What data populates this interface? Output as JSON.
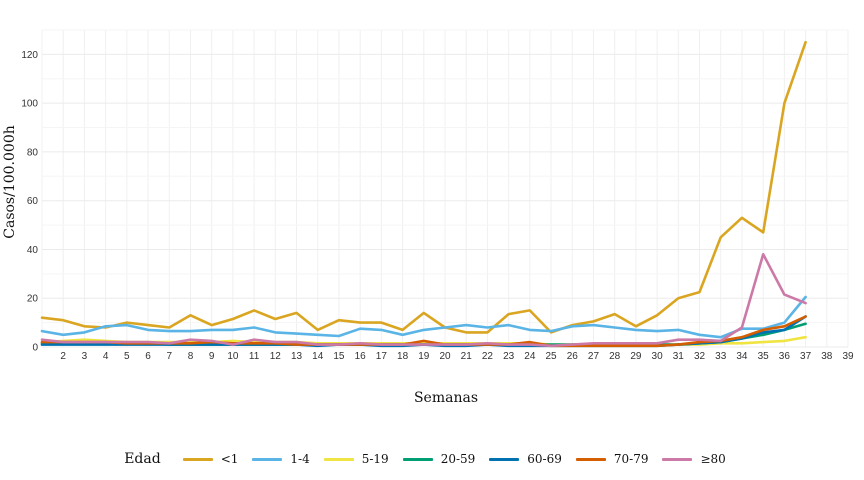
{
  "chart_data": {
    "type": "line",
    "title": "",
    "xlabel": "Semanas",
    "ylabel": "Casos/100.000h",
    "xlim": [
      1,
      39
    ],
    "ylim": [
      0,
      130
    ],
    "x_ticks": [
      2,
      3,
      4,
      5,
      6,
      7,
      8,
      9,
      10,
      11,
      12,
      13,
      14,
      15,
      16,
      17,
      18,
      19,
      20,
      21,
      22,
      23,
      24,
      25,
      26,
      27,
      28,
      29,
      30,
      31,
      32,
      33,
      34,
      35,
      36,
      37,
      38,
      39
    ],
    "y_ticks": [
      0,
      20,
      40,
      60,
      80,
      100,
      120
    ],
    "grid": true,
    "legend": {
      "title": "Edad",
      "position": "bottom"
    },
    "x": [
      1,
      2,
      3,
      4,
      5,
      6,
      7,
      8,
      9,
      10,
      11,
      12,
      13,
      14,
      15,
      16,
      17,
      18,
      19,
      20,
      21,
      22,
      23,
      24,
      25,
      26,
      27,
      28,
      29,
      30,
      31,
      32,
      33,
      34,
      35,
      36,
      37
    ],
    "series": [
      {
        "name": "<1",
        "color": "#DAA520",
        "values": [
          12,
          11,
          8.5,
          8,
          10,
          9,
          8,
          13,
          9,
          11.5,
          15,
          11.5,
          14,
          7,
          11,
          10,
          10,
          7,
          14,
          8,
          6,
          6,
          13.5,
          15,
          6,
          9,
          10.5,
          13.5,
          8.5,
          13,
          20,
          22.5,
          45,
          53,
          47,
          100,
          125
        ]
      },
      {
        "name": "1-4",
        "color": "#5AB4E5",
        "values": [
          6.5,
          5,
          6,
          8.5,
          9,
          7,
          6.5,
          6.5,
          7,
          7,
          8,
          6,
          5.5,
          5,
          4.5,
          7.5,
          7,
          5,
          7,
          8,
          9,
          8,
          9,
          7,
          6.5,
          8.5,
          9,
          8,
          7,
          6.5,
          7,
          5,
          4,
          7.5,
          7.5,
          10,
          20.5
        ]
      },
      {
        "name": "5-19",
        "color": "#F0E442",
        "values": [
          2,
          2.5,
          3,
          2.5,
          2,
          2,
          2,
          2,
          2,
          2.5,
          2,
          2,
          2,
          1.5,
          1.5,
          1.5,
          1.5,
          1.5,
          1.5,
          1.5,
          1.5,
          1.5,
          1.5,
          1.5,
          1,
          1,
          1,
          1,
          1,
          1,
          1,
          1,
          1.5,
          1.5,
          2,
          2.5,
          4
        ]
      },
      {
        "name": "20-59",
        "color": "#009E73",
        "values": [
          1.5,
          1.5,
          1.5,
          1.5,
          1.5,
          1.5,
          1,
          1,
          1,
          1,
          1,
          1,
          1,
          1,
          1,
          1,
          1,
          1,
          1,
          1,
          1,
          1,
          1,
          1,
          1,
          1,
          1,
          1,
          1,
          1,
          1,
          1.5,
          2,
          3.5,
          5,
          7,
          9.5
        ]
      },
      {
        "name": "60-69",
        "color": "#0072B2",
        "values": [
          1,
          1,
          1,
          1,
          1,
          1,
          1,
          1,
          1,
          1,
          1,
          1,
          1,
          0.5,
          1,
          1,
          0.5,
          0.5,
          1,
          0.5,
          0.5,
          1,
          0.5,
          0.5,
          0.5,
          0.5,
          0.5,
          0.5,
          0.5,
          0.5,
          1,
          1.5,
          2,
          3.5,
          6,
          7,
          12.5
        ]
      },
      {
        "name": "70-79",
        "color": "#D55E00",
        "values": [
          2,
          2,
          2,
          2,
          1.5,
          1.5,
          1.5,
          1.5,
          2,
          1.5,
          1.5,
          1.5,
          1,
          1,
          1,
          1,
          1,
          1,
          2.5,
          1,
          1,
          1,
          1,
          2,
          0.5,
          0.5,
          0.5,
          0.5,
          0.5,
          0.5,
          1,
          2,
          2.5,
          4,
          7,
          8.5,
          12.5
        ]
      },
      {
        "name": "≥80",
        "color": "#CC79A7",
        "values": [
          3,
          2,
          2,
          2,
          2,
          2,
          1.5,
          3,
          2.5,
          1,
          3,
          2,
          2,
          1,
          1,
          1.5,
          1,
          1,
          1,
          1,
          1,
          1.5,
          1,
          1,
          0.5,
          1,
          1.5,
          1.5,
          1.5,
          1.5,
          3,
          3,
          2.5,
          8,
          38,
          21.5,
          18
        ]
      }
    ]
  }
}
